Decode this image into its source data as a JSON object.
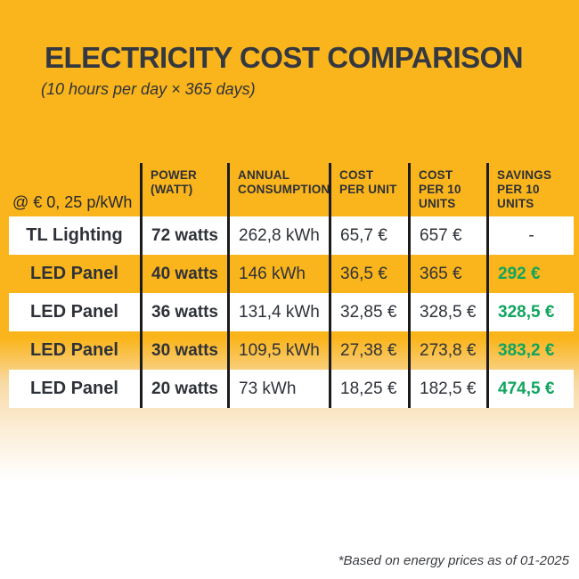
{
  "chart_data": {
    "type": "table",
    "title": "ELECTRICITY COST COMPARISON",
    "subtitle": "(10 hours per day × 365 days)",
    "rate_label": "@ € 0, 25 p/kWh",
    "columns": [
      "POWER\n(WATT)",
      "ANNUAL\nCONSUMPTION",
      "COST\nPER UNIT",
      "COST\nPER 10\nUNITS",
      "SAVINGS\nPER 10\nUNITS"
    ],
    "rows": [
      {
        "product": "TL Lighting",
        "power": "72 watts",
        "annual_consumption": "262,8 kWh",
        "cost_per_unit": "65,7 €",
        "cost_per_10_units": "657 €",
        "savings_per_10_units": "-"
      },
      {
        "product": "LED Panel",
        "power": "40 watts",
        "annual_consumption": "146 kWh",
        "cost_per_unit": "36,5 €",
        "cost_per_10_units": "365 €",
        "savings_per_10_units": "292 €"
      },
      {
        "product": "LED Panel",
        "power": "36 watts",
        "annual_consumption": "131,4 kWh",
        "cost_per_unit": "32,85 €",
        "cost_per_10_units": "328,5 €",
        "savings_per_10_units": "328,5 €"
      },
      {
        "product": "LED Panel",
        "power": "30 watts",
        "annual_consumption": "109,5 kWh",
        "cost_per_unit": "27,38 €",
        "cost_per_10_units": "273,8 €",
        "savings_per_10_units": "383,2 €"
      },
      {
        "product": "LED Panel",
        "power": "20 watts",
        "annual_consumption": "73 kWh",
        "cost_per_unit": "18,25 €",
        "cost_per_10_units": "182,5 €",
        "savings_per_10_units": "474,5 €"
      }
    ],
    "footnote": "*Based on energy prices as of 01-2025",
    "layout": {
      "grid": "off",
      "row_striping": [
        "white",
        "orange",
        "white",
        "orange",
        "white"
      ]
    }
  },
  "colors": {
    "background_orange": "#FBB51C",
    "row_white": "#FFFFFF",
    "divider_black": "#1B1B1B",
    "text_dark": "#2E3238",
    "savings_green": "#0FA55F"
  }
}
